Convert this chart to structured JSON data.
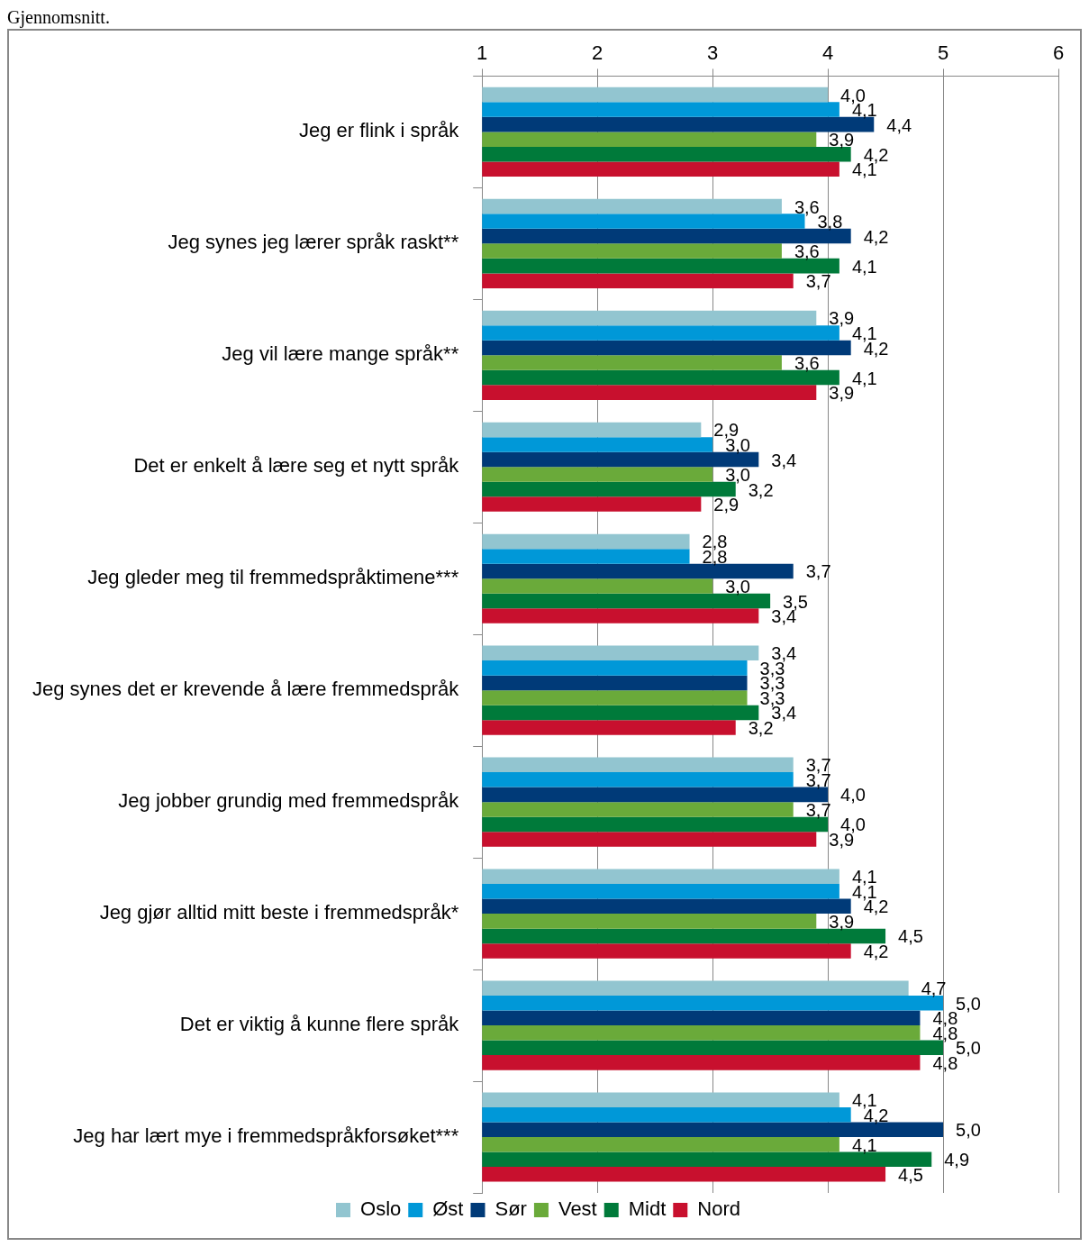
{
  "chart_data": {
    "type": "bar",
    "orientation": "horizontal",
    "title": "Gjennomsnitt.",
    "categories": [
      "Jeg er flink i språk",
      "Jeg synes jeg lærer språk raskt**",
      "Jeg vil lære mange språk**",
      "Det er enkelt å lære seg et nytt språk",
      "Jeg gleder meg til fremmedspråktimene***",
      "Jeg synes det er krevende å lære fremmedspråk",
      "Jeg jobber grundig med fremmedspråk",
      "Jeg gjør alltid mitt beste i fremmedspråk*",
      "Det er viktig å kunne flere språk",
      "Jeg har lært mye i fremmedspråkforsøket***"
    ],
    "series": [
      {
        "name": "Oslo",
        "color": "#92c5d0",
        "values": [
          4.0,
          3.6,
          3.9,
          2.9,
          2.8,
          3.4,
          3.7,
          4.1,
          4.7,
          4.1
        ],
        "value_labels": [
          "4,0",
          "3,6",
          "3,9",
          "2,9",
          "2,8",
          "3,4",
          "3,7",
          "4,1",
          "4,7",
          "4,1"
        ]
      },
      {
        "name": "Øst",
        "color": "#0098d8",
        "values": [
          4.1,
          3.8,
          4.1,
          3.0,
          2.8,
          3.3,
          3.7,
          4.1,
          5.0,
          4.2
        ],
        "value_labels": [
          "4,1",
          "3,8",
          "4,1",
          "3,0",
          "2,8",
          "3,3",
          "3,7",
          "4,1",
          "5,0",
          "4,2"
        ]
      },
      {
        "name": "Sør",
        "color": "#003a78",
        "values": [
          4.4,
          4.2,
          4.2,
          3.4,
          3.7,
          3.3,
          4.0,
          4.2,
          4.8,
          5.0
        ],
        "value_labels": [
          "4,4",
          "4,2",
          "4,2",
          "3,4",
          "3,7",
          "3,3",
          "4,0",
          "4,2",
          "4,8",
          "5,0"
        ]
      },
      {
        "name": "Vest",
        "color": "#6aaa3a",
        "values": [
          3.9,
          3.6,
          3.6,
          3.0,
          3.0,
          3.3,
          3.7,
          3.9,
          4.8,
          4.1
        ],
        "value_labels": [
          "3,9",
          "3,6",
          "3,6",
          "3,0",
          "3,0",
          "3,3",
          "3,7",
          "3,9",
          "4,8",
          "4,1"
        ]
      },
      {
        "name": "Midt",
        "color": "#007a3a",
        "values": [
          4.2,
          4.1,
          4.1,
          3.2,
          3.5,
          3.4,
          4.0,
          4.5,
          5.0,
          4.9
        ],
        "value_labels": [
          "4,2",
          "4,1",
          "4,1",
          "3,2",
          "3,5",
          "3,4",
          "4,0",
          "4,5",
          "5,0",
          "4,9"
        ]
      },
      {
        "name": "Nord",
        "color": "#c8102e",
        "values": [
          4.1,
          3.7,
          3.9,
          2.9,
          3.4,
          3.2,
          3.9,
          4.2,
          4.8,
          4.5
        ],
        "value_labels": [
          "4,1",
          "3,7",
          "3,9",
          "2,9",
          "3,4",
          "3,2",
          "3,9",
          "4,2",
          "4,8",
          "4,5"
        ]
      }
    ],
    "xlim": [
      1,
      6
    ],
    "xticks": [
      1,
      2,
      3,
      4,
      5,
      6
    ],
    "grid": "x",
    "legend": "bottom"
  }
}
